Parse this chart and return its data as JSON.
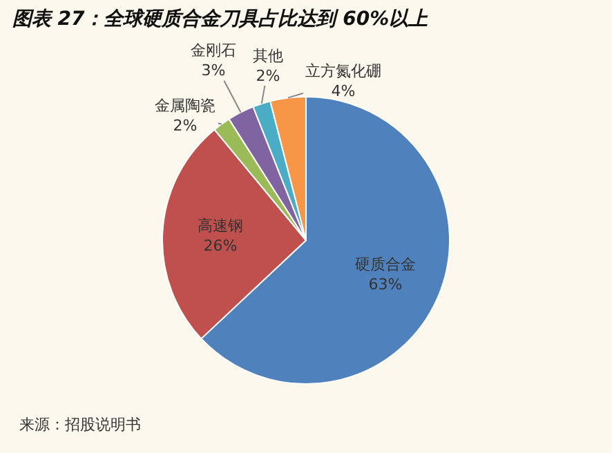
{
  "chart_data": {
    "type": "pie",
    "title": "图表 27：全球硬质合金刀具占比达到 60%以上",
    "categories": [
      "硬质合金",
      "高速钢",
      "金属陶瓷",
      "金刚石",
      "其他",
      "立方氮化硼"
    ],
    "values": [
      63,
      26,
      2,
      3,
      2,
      4
    ],
    "value_labels": [
      "63%",
      "26%",
      "2%",
      "3%",
      "2%",
      "4%"
    ],
    "colors": [
      "#4f81bd",
      "#c0504d",
      "#9bbb59",
      "#8064a2",
      "#4bacc6",
      "#f79646"
    ],
    "annotations": [
      "来源：招股说明书"
    ],
    "legend": false
  }
}
